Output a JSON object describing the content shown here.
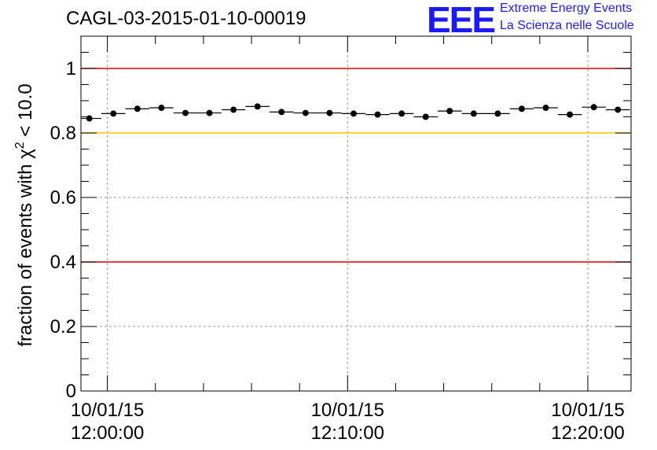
{
  "title": "CAGL-03-2015-01-10-00019",
  "logo": {
    "letters": "EEE",
    "line1": "Extreme Energy Events",
    "line2": "La Scienza nelle Scuole",
    "color": "#1a1aff"
  },
  "chart_data": {
    "type": "scatter",
    "ylabel_text": "fraction of events with χ",
    "ylabel_sup": "2",
    "ylabel_rest": " < 10.0",
    "ylim": [
      0,
      1.1
    ],
    "yticks": [
      0,
      0.2,
      0.4,
      0.6,
      0.8,
      1
    ],
    "ytick_labels": [
      "0",
      "0.2",
      "0.4",
      "0.6",
      "0.8",
      "1"
    ],
    "xlim_minutes": [
      -1.1,
      21.8
    ],
    "xticks_minutes": [
      0,
      10,
      20
    ],
    "xtick_labels": [
      {
        "date": "10/01/15",
        "time": "12:00:00"
      },
      {
        "date": "10/01/15",
        "time": "12:10:00"
      },
      {
        "date": "10/01/15",
        "time": "12:20:00"
      }
    ],
    "grid": true,
    "reference_lines": [
      {
        "y": 1.0,
        "color": "#e00000"
      },
      {
        "y": 0.8,
        "color": "#ffc400"
      },
      {
        "y": 0.4,
        "color": "#e00000"
      }
    ],
    "series": [
      {
        "x_minutes": [
          -0.75,
          0.25,
          1.25,
          2.25,
          3.25,
          4.25,
          5.25,
          6.25,
          7.25,
          8.25,
          9.25,
          10.25,
          11.25,
          12.25,
          13.25,
          14.25,
          15.25,
          16.25,
          17.25,
          18.25,
          19.25,
          20.25,
          21.25
        ],
        "x_half_width_minutes": 0.5,
        "values": [
          0.845,
          0.86,
          0.875,
          0.878,
          0.862,
          0.862,
          0.872,
          0.882,
          0.865,
          0.862,
          0.862,
          0.86,
          0.857,
          0.86,
          0.85,
          0.868,
          0.86,
          0.86,
          0.875,
          0.878,
          0.857,
          0.88,
          0.872
        ]
      }
    ]
  }
}
